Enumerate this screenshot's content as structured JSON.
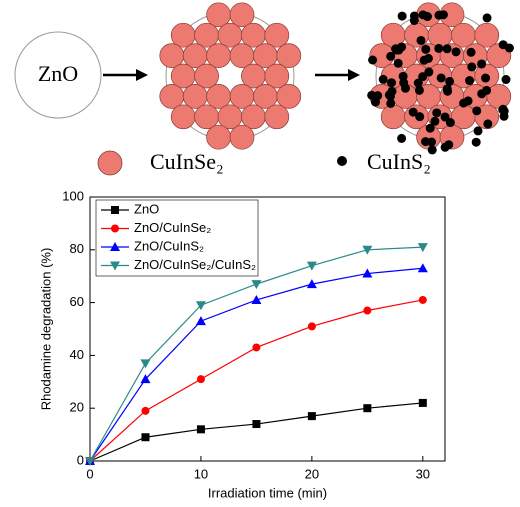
{
  "schematic": {
    "core_label": "ZnO",
    "legend": [
      "CuInSe₂",
      "CuInS₂"
    ]
  },
  "chart_data": {
    "type": "line",
    "x_label": "Irradiation time (min)",
    "y_label": "Rhodamine degradation (%)",
    "x": [
      0,
      5,
      10,
      15,
      20,
      25,
      30
    ],
    "series": [
      {
        "name": "ZnO",
        "color": "#000000",
        "marker": "square",
        "values": [
          0,
          9,
          12,
          14,
          17,
          20,
          22
        ]
      },
      {
        "name": "ZnO/CuInSe₂",
        "color": "#ff0000",
        "marker": "circle",
        "values": [
          0,
          19,
          31,
          43,
          51,
          57,
          61
        ]
      },
      {
        "name": "ZnO/CuInS₂",
        "color": "#0000ff",
        "marker": "triangle-up",
        "values": [
          0,
          31,
          53,
          61,
          67,
          71,
          73
        ]
      },
      {
        "name": "ZnO/CuInSe₂/CuInS₂",
        "color": "#2a8a8a",
        "marker": "triangle-down",
        "values": [
          0,
          37,
          59,
          67,
          74,
          80,
          81
        ]
      }
    ],
    "xlim": [
      0,
      32
    ],
    "xticks": [
      0,
      10,
      20,
      30
    ],
    "ylim": [
      0,
      100
    ],
    "yticks": [
      0,
      20,
      40,
      60,
      80,
      100
    ],
    "legend": "upper left"
  }
}
